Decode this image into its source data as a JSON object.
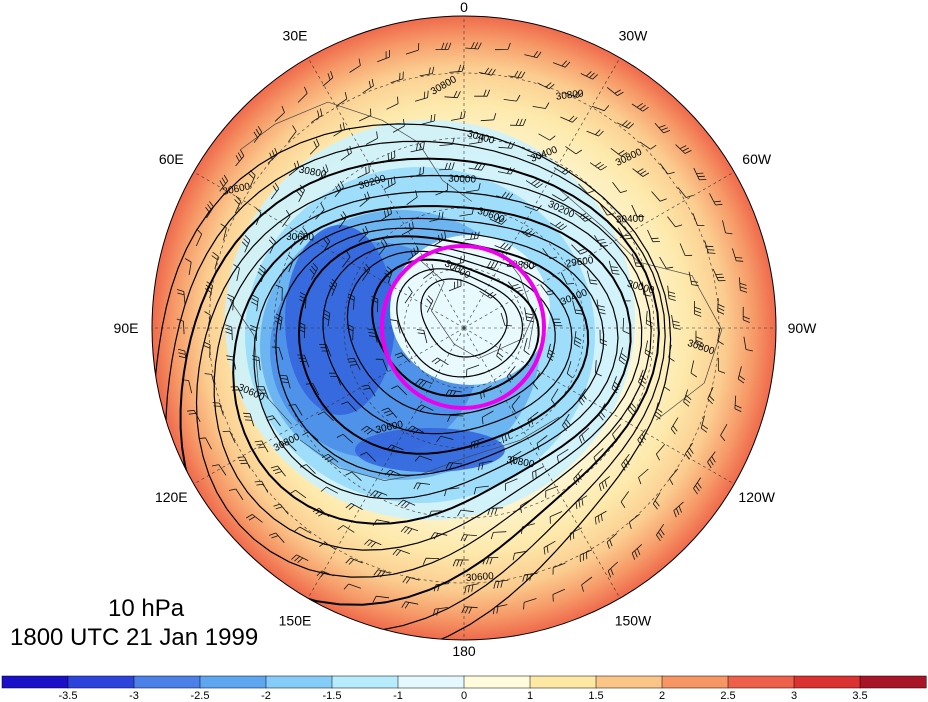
{
  "map": {
    "level_label": "10 hPa",
    "time_label": "1800 UTC 21 Jan 1999",
    "longitude_labels": [
      {
        "text": "0",
        "lon": 0
      },
      {
        "text": "30W",
        "lon": -30
      },
      {
        "text": "60W",
        "lon": -60
      },
      {
        "text": "90W",
        "lon": -90
      },
      {
        "text": "120W",
        "lon": -120
      },
      {
        "text": "150W",
        "lon": -150
      },
      {
        "text": "180",
        "lon": 180
      },
      {
        "text": "150E",
        "lon": 150
      },
      {
        "text": "120E",
        "lon": 120
      },
      {
        "text": "90E",
        "lon": 90
      },
      {
        "text": "60E",
        "lon": 60
      },
      {
        "text": "30E",
        "lon": 30
      }
    ],
    "contour_labels": [
      "30800",
      "30800",
      "30400",
      "30400",
      "30000",
      "30200",
      "30600",
      "30800",
      "30800",
      "30400",
      "30600",
      "30200",
      "29800",
      "30000",
      "29600",
      "30000",
      "30400",
      "30600",
      "30600",
      "30600",
      "30800",
      "30800",
      "30600",
      "30800"
    ],
    "highlight_color": "#ee00ee",
    "shading_colors": {
      "negative": [
        "#2222cc",
        "#3366dd",
        "#4d8ee8",
        "#66b0f0",
        "#99dcfa",
        "#cdf2fd"
      ],
      "positive": [
        "#fffae0",
        "#fde8a8",
        "#fbc48a",
        "#f69464",
        "#ee6048",
        "#d33230"
      ]
    },
    "colorbar": {
      "tick_labels": [
        "-3.5",
        "-3",
        "-2.5",
        "-2",
        "-1.5",
        "-1",
        "0",
        "1",
        "1.5",
        "2",
        "2.5",
        "3",
        "3.5"
      ],
      "colors": [
        "#1a10c8",
        "#2c44dc",
        "#4a80e8",
        "#5fa6f0",
        "#86ccf8",
        "#b6ecfc",
        "#e4f8fe",
        "#fffbdc",
        "#fde8a4",
        "#fbc588",
        "#f59664",
        "#ee604a",
        "#d93230",
        "#a81526"
      ]
    }
  }
}
